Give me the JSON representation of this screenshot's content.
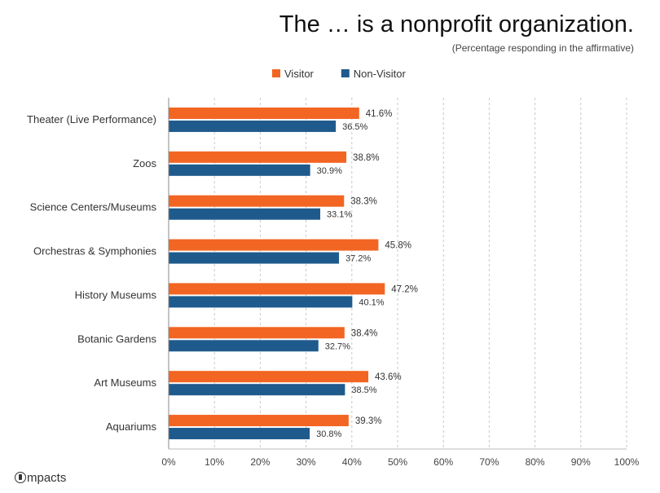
{
  "chart_data": {
    "type": "bar",
    "orientation": "horizontal",
    "title": "The … is a nonprofit organization.",
    "subtitle": "(Percentage responding in the affirmative)",
    "categories": [
      "Theater (Live Performance)",
      "Zoos",
      "Science Centers/Museums",
      "Orchestras & Symphonies",
      "History Museums",
      "Botanic Gardens",
      "Art Museums",
      "Aquariums"
    ],
    "series": [
      {
        "name": "Visitor",
        "color": "#f26522",
        "values": [
          41.6,
          38.8,
          38.3,
          45.8,
          47.2,
          38.4,
          43.6,
          39.3
        ],
        "labels": [
          "41.6%",
          "38.8%",
          "38.3%",
          "45.8%",
          "47.2%",
          "38.4%",
          "43.6%",
          "39.3%"
        ]
      },
      {
        "name": "Non-Visitor",
        "color": "#1f5a8c",
        "values": [
          36.5,
          30.9,
          33.1,
          37.2,
          40.1,
          32.7,
          38.5,
          30.8
        ],
        "labels": [
          "36.5%",
          "30.9%",
          "33.1%",
          "37.2%",
          "40.1%",
          "32.7%",
          "38.5%",
          "30.8%"
        ]
      }
    ],
    "xlim": [
      0,
      100
    ],
    "xticks": [
      "0%",
      "10%",
      "20%",
      "30%",
      "40%",
      "50%",
      "60%",
      "70%",
      "80%",
      "90%",
      "100%"
    ],
    "xlabel": "",
    "ylabel": "",
    "grid": "vertical dashed",
    "legend_position": "top"
  },
  "footer": {
    "logo_text": "mpacts"
  }
}
